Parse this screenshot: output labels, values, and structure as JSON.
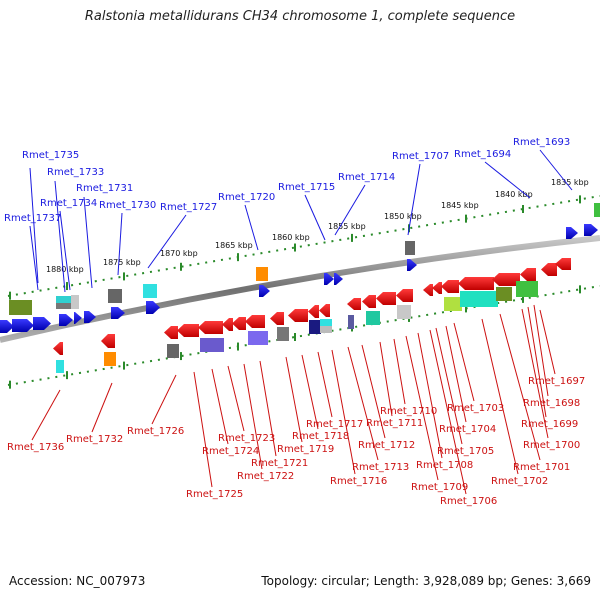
{
  "title": "Ralstonia metallidurans CH34 chromosome 1, complete sequence",
  "accession": "Accession: NC_007973",
  "summary": "Topology: circular; Length: 3,928,089 bp; Genes: 3,669",
  "colors": {
    "forward": "#1a1ae0",
    "reverse": "#cc1111",
    "ruler": "#2a8a2a",
    "backbone": "#808080"
  },
  "scale_labels": [
    "1880 kbp",
    "1875 kbp",
    "1870 kbp",
    "1865 kbp",
    "1860 kbp",
    "1855 kbp",
    "1850 kbp",
    "1845 kbp",
    "1840 kbp",
    "1835 kbp"
  ],
  "forward_genes": [
    "Rmet_1735",
    "Rmet_1733",
    "Rmet_1734",
    "Rmet_1731",
    "Rmet_1737",
    "Rmet_1730",
    "Rmet_1727",
    "Rmet_1720",
    "Rmet_1715",
    "Rmet_1714",
    "Rmet_1707",
    "Rmet_1694",
    "Rmet_1693"
  ],
  "reverse_genes": [
    "Rmet_1736",
    "Rmet_1732",
    "Rmet_1726",
    "Rmet_1725",
    "Rmet_1724",
    "Rmet_1723",
    "Rmet_1722",
    "Rmet_1721",
    "Rmet_1719",
    "Rmet_1718",
    "Rmet_1717",
    "Rmet_1716",
    "Rmet_1713",
    "Rmet_1712",
    "Rmet_1711",
    "Rmet_1710",
    "Rmet_1709",
    "Rmet_1708",
    "Rmet_1706",
    "Rmet_1705",
    "Rmet_1704",
    "Rmet_1703",
    "Rmet_1702",
    "Rmet_1701",
    "Rmet_1700",
    "Rmet_1699",
    "Rmet_1698",
    "Rmet_1697"
  ]
}
